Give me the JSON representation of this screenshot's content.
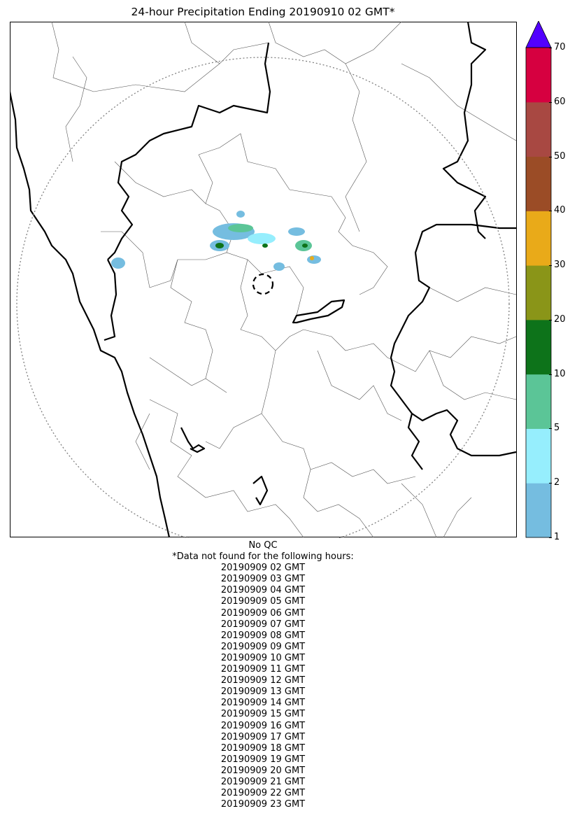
{
  "title": "24-hour Precipitation Ending 20190910 02 GMT*",
  "map": {
    "frame_color": "#000000",
    "range_ring_color": "#808080",
    "state_border_color": "#000000",
    "district_border_color": "#555555"
  },
  "colorbar": {
    "bins": [
      {
        "from": 1,
        "to": 2,
        "color": "#75bde0"
      },
      {
        "from": 2,
        "to": 5,
        "color": "#96eefd"
      },
      {
        "from": 5,
        "to": 10,
        "color": "#5bc597"
      },
      {
        "from": 10,
        "to": 20,
        "color": "#0d731a"
      },
      {
        "from": 20,
        "to": 30,
        "color": "#8a9518"
      },
      {
        "from": 30,
        "to": 40,
        "color": "#e9aa19"
      },
      {
        "from": 40,
        "to": 50,
        "color": "#9b4c26"
      },
      {
        "from": 50,
        "to": 60,
        "color": "#a84842"
      },
      {
        "from": 60,
        "to": 70,
        "color": "#d60040"
      }
    ],
    "extend_color": "#5200ff",
    "ticks": [
      "1",
      "2",
      "5",
      "10",
      "20",
      "30",
      "40",
      "50",
      "60",
      "70"
    ]
  },
  "footer": {
    "qc": "No QC",
    "missing_heading": "*Data not found for the following hours:",
    "missing_hours": [
      "20190909 02 GMT",
      "20190909 03 GMT",
      "20190909 04 GMT",
      "20190909 05 GMT",
      "20190909 06 GMT",
      "20190909 07 GMT",
      "20190909 08 GMT",
      "20190909 09 GMT",
      "20190909 10 GMT",
      "20190909 11 GMT",
      "20190909 12 GMT",
      "20190909 13 GMT",
      "20190909 14 GMT",
      "20190909 15 GMT",
      "20190909 16 GMT",
      "20190909 17 GMT",
      "20190909 18 GMT",
      "20190909 19 GMT",
      "20190909 20 GMT",
      "20190909 21 GMT",
      "20190909 22 GMT",
      "20190909 23 GMT"
    ]
  }
}
